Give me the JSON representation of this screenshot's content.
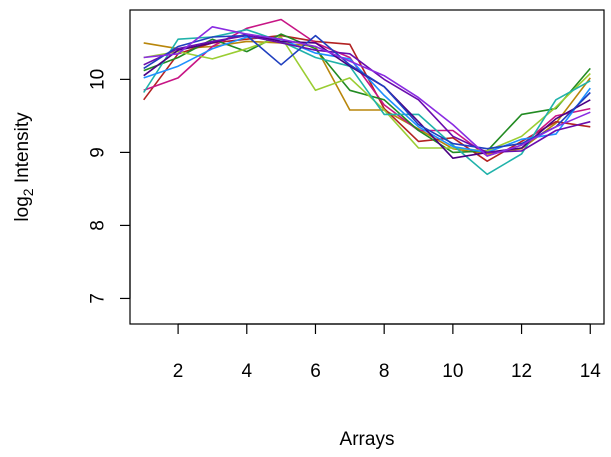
{
  "chart_data": {
    "type": "line",
    "title": "",
    "xlabel": "Arrays",
    "ylabel": {
      "prefix": "log",
      "subscript": "2",
      "suffix": " Intensity"
    },
    "xlim": [
      0.6,
      14.4
    ],
    "ylim": [
      6.65,
      10.95
    ],
    "xticks": [
      2,
      4,
      6,
      8,
      10,
      12,
      14
    ],
    "yticks": [
      7,
      8,
      9,
      10
    ],
    "grid": false,
    "x": [
      1,
      2,
      3,
      4,
      5,
      6,
      7,
      8,
      9,
      10,
      11,
      12,
      13,
      14
    ],
    "series": [
      {
        "color": "#b8860b",
        "values": [
          10.5,
          10.42,
          10.45,
          10.52,
          10.5,
          10.45,
          9.58,
          9.58,
          9.32,
          9.05,
          8.98,
          9.05,
          9.4,
          10.02
        ]
      },
      {
        "color": "#b22222",
        "values": [
          9.72,
          10.35,
          10.5,
          10.55,
          10.6,
          10.52,
          10.48,
          9.6,
          9.15,
          9.2,
          8.88,
          9.15,
          9.42,
          9.35
        ]
      },
      {
        "color": "#c71585",
        "values": [
          9.85,
          10.02,
          10.45,
          10.7,
          10.82,
          10.5,
          10.3,
          9.65,
          9.3,
          9.3,
          8.95,
          9.1,
          9.5,
          9.6
        ]
      },
      {
        "color": "#228b22",
        "values": [
          10.12,
          10.3,
          10.55,
          10.38,
          10.62,
          10.42,
          9.85,
          9.72,
          9.3,
          9.0,
          9.02,
          9.52,
          9.6,
          10.15
        ]
      },
      {
        "color": "#9acd32",
        "values": [
          10.3,
          10.38,
          10.28,
          10.42,
          10.58,
          9.85,
          10.02,
          9.58,
          9.06,
          9.06,
          9.02,
          9.22,
          9.62,
          10.08
        ]
      },
      {
        "color": "#20b2aa",
        "values": [
          9.82,
          10.55,
          10.58,
          10.68,
          10.52,
          10.3,
          10.18,
          9.52,
          9.52,
          9.1,
          8.7,
          8.98,
          9.72,
          9.98
        ]
      },
      {
        "color": "#1e90ff",
        "values": [
          10.02,
          10.18,
          10.42,
          10.58,
          10.55,
          10.36,
          10.28,
          9.78,
          9.35,
          9.08,
          9.0,
          9.18,
          9.25,
          9.88
        ]
      },
      {
        "color": "#4b0082",
        "values": [
          10.05,
          10.4,
          10.5,
          10.62,
          10.52,
          10.5,
          10.18,
          9.9,
          9.42,
          8.92,
          9.0,
          9.06,
          9.46,
          9.72
        ]
      },
      {
        "color": "#6a0dad",
        "values": [
          10.2,
          10.42,
          10.52,
          10.6,
          10.5,
          10.4,
          10.35,
          10.0,
          9.72,
          9.22,
          9.0,
          9.02,
          9.3,
          9.42
        ]
      },
      {
        "color": "#1f3fbf",
        "values": [
          10.15,
          10.45,
          10.58,
          10.6,
          10.2,
          10.6,
          10.2,
          9.9,
          9.38,
          9.12,
          9.05,
          9.12,
          9.35,
          9.82
        ]
      },
      {
        "color": "#8a2be2",
        "values": [
          10.3,
          10.35,
          10.72,
          10.62,
          10.55,
          10.45,
          10.25,
          10.05,
          9.75,
          9.38,
          8.95,
          9.1,
          9.35,
          9.55
        ]
      }
    ]
  }
}
